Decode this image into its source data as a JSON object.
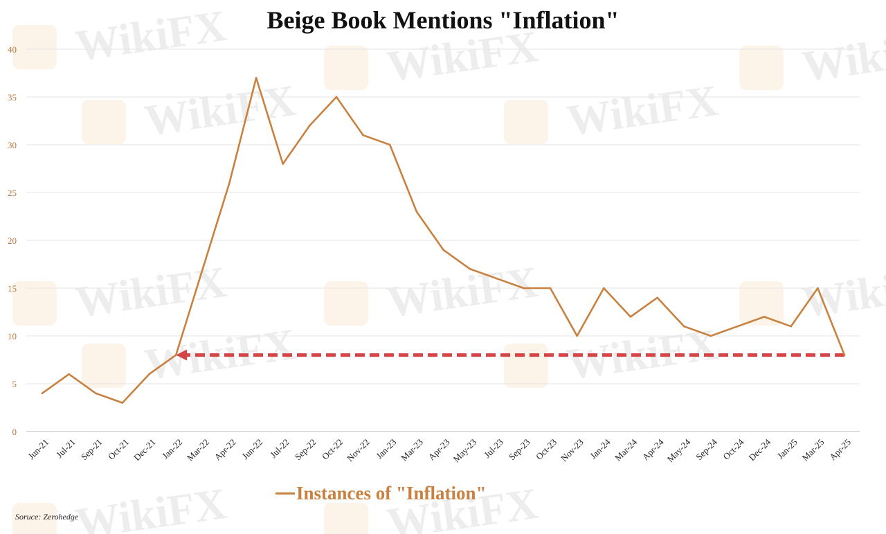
{
  "watermark": "WikiFX",
  "source": "Soruce: Zerohedge",
  "colors": {
    "line": "#C8813F",
    "arrow": "#D64545",
    "tick": "#B9793A",
    "grid": "#E6E6E6"
  },
  "chart_data": {
    "type": "line",
    "title": "Beige Book Mentions \"Inflation\"",
    "xlabel": "",
    "ylabel": "",
    "ylim": [
      0,
      40
    ],
    "yticks": [
      0,
      5,
      10,
      15,
      20,
      25,
      30,
      35,
      40
    ],
    "grid": true,
    "legend_position": "bottom",
    "x": [
      "Jun-21",
      "Jul-21",
      "Sep-21",
      "Oct-21",
      "Dec-21",
      "Jan-22",
      "Mar-22",
      "Apr-22",
      "Jun-22",
      "Jul-22",
      "Sep-22",
      "Oct-22",
      "Nov-22",
      "Jan-23",
      "Mar-23",
      "Apr-23",
      "May-23",
      "Jul-23",
      "Sep-23",
      "Oct-23",
      "Nov-23",
      "Jan-24",
      "Mar-24",
      "Apr-24",
      "May-24",
      "Sep-24",
      "Oct-24",
      "Dec-24",
      "Jan-25",
      "Mar-25",
      "Apr-25"
    ],
    "series": [
      {
        "name": "Instances of \"Inflation\"",
        "values": [
          4,
          6,
          4,
          3,
          6,
          8,
          17,
          26,
          37,
          28,
          32,
          35,
          31,
          30,
          23,
          19,
          17,
          16,
          15,
          15,
          10,
          15,
          12,
          14,
          11,
          10,
          11,
          12,
          11,
          15,
          8
        ]
      }
    ],
    "annotations": [
      {
        "type": "dashed-arrow",
        "from_x": "Apr-25",
        "to_x": "Jan-22",
        "y": 8
      }
    ]
  }
}
